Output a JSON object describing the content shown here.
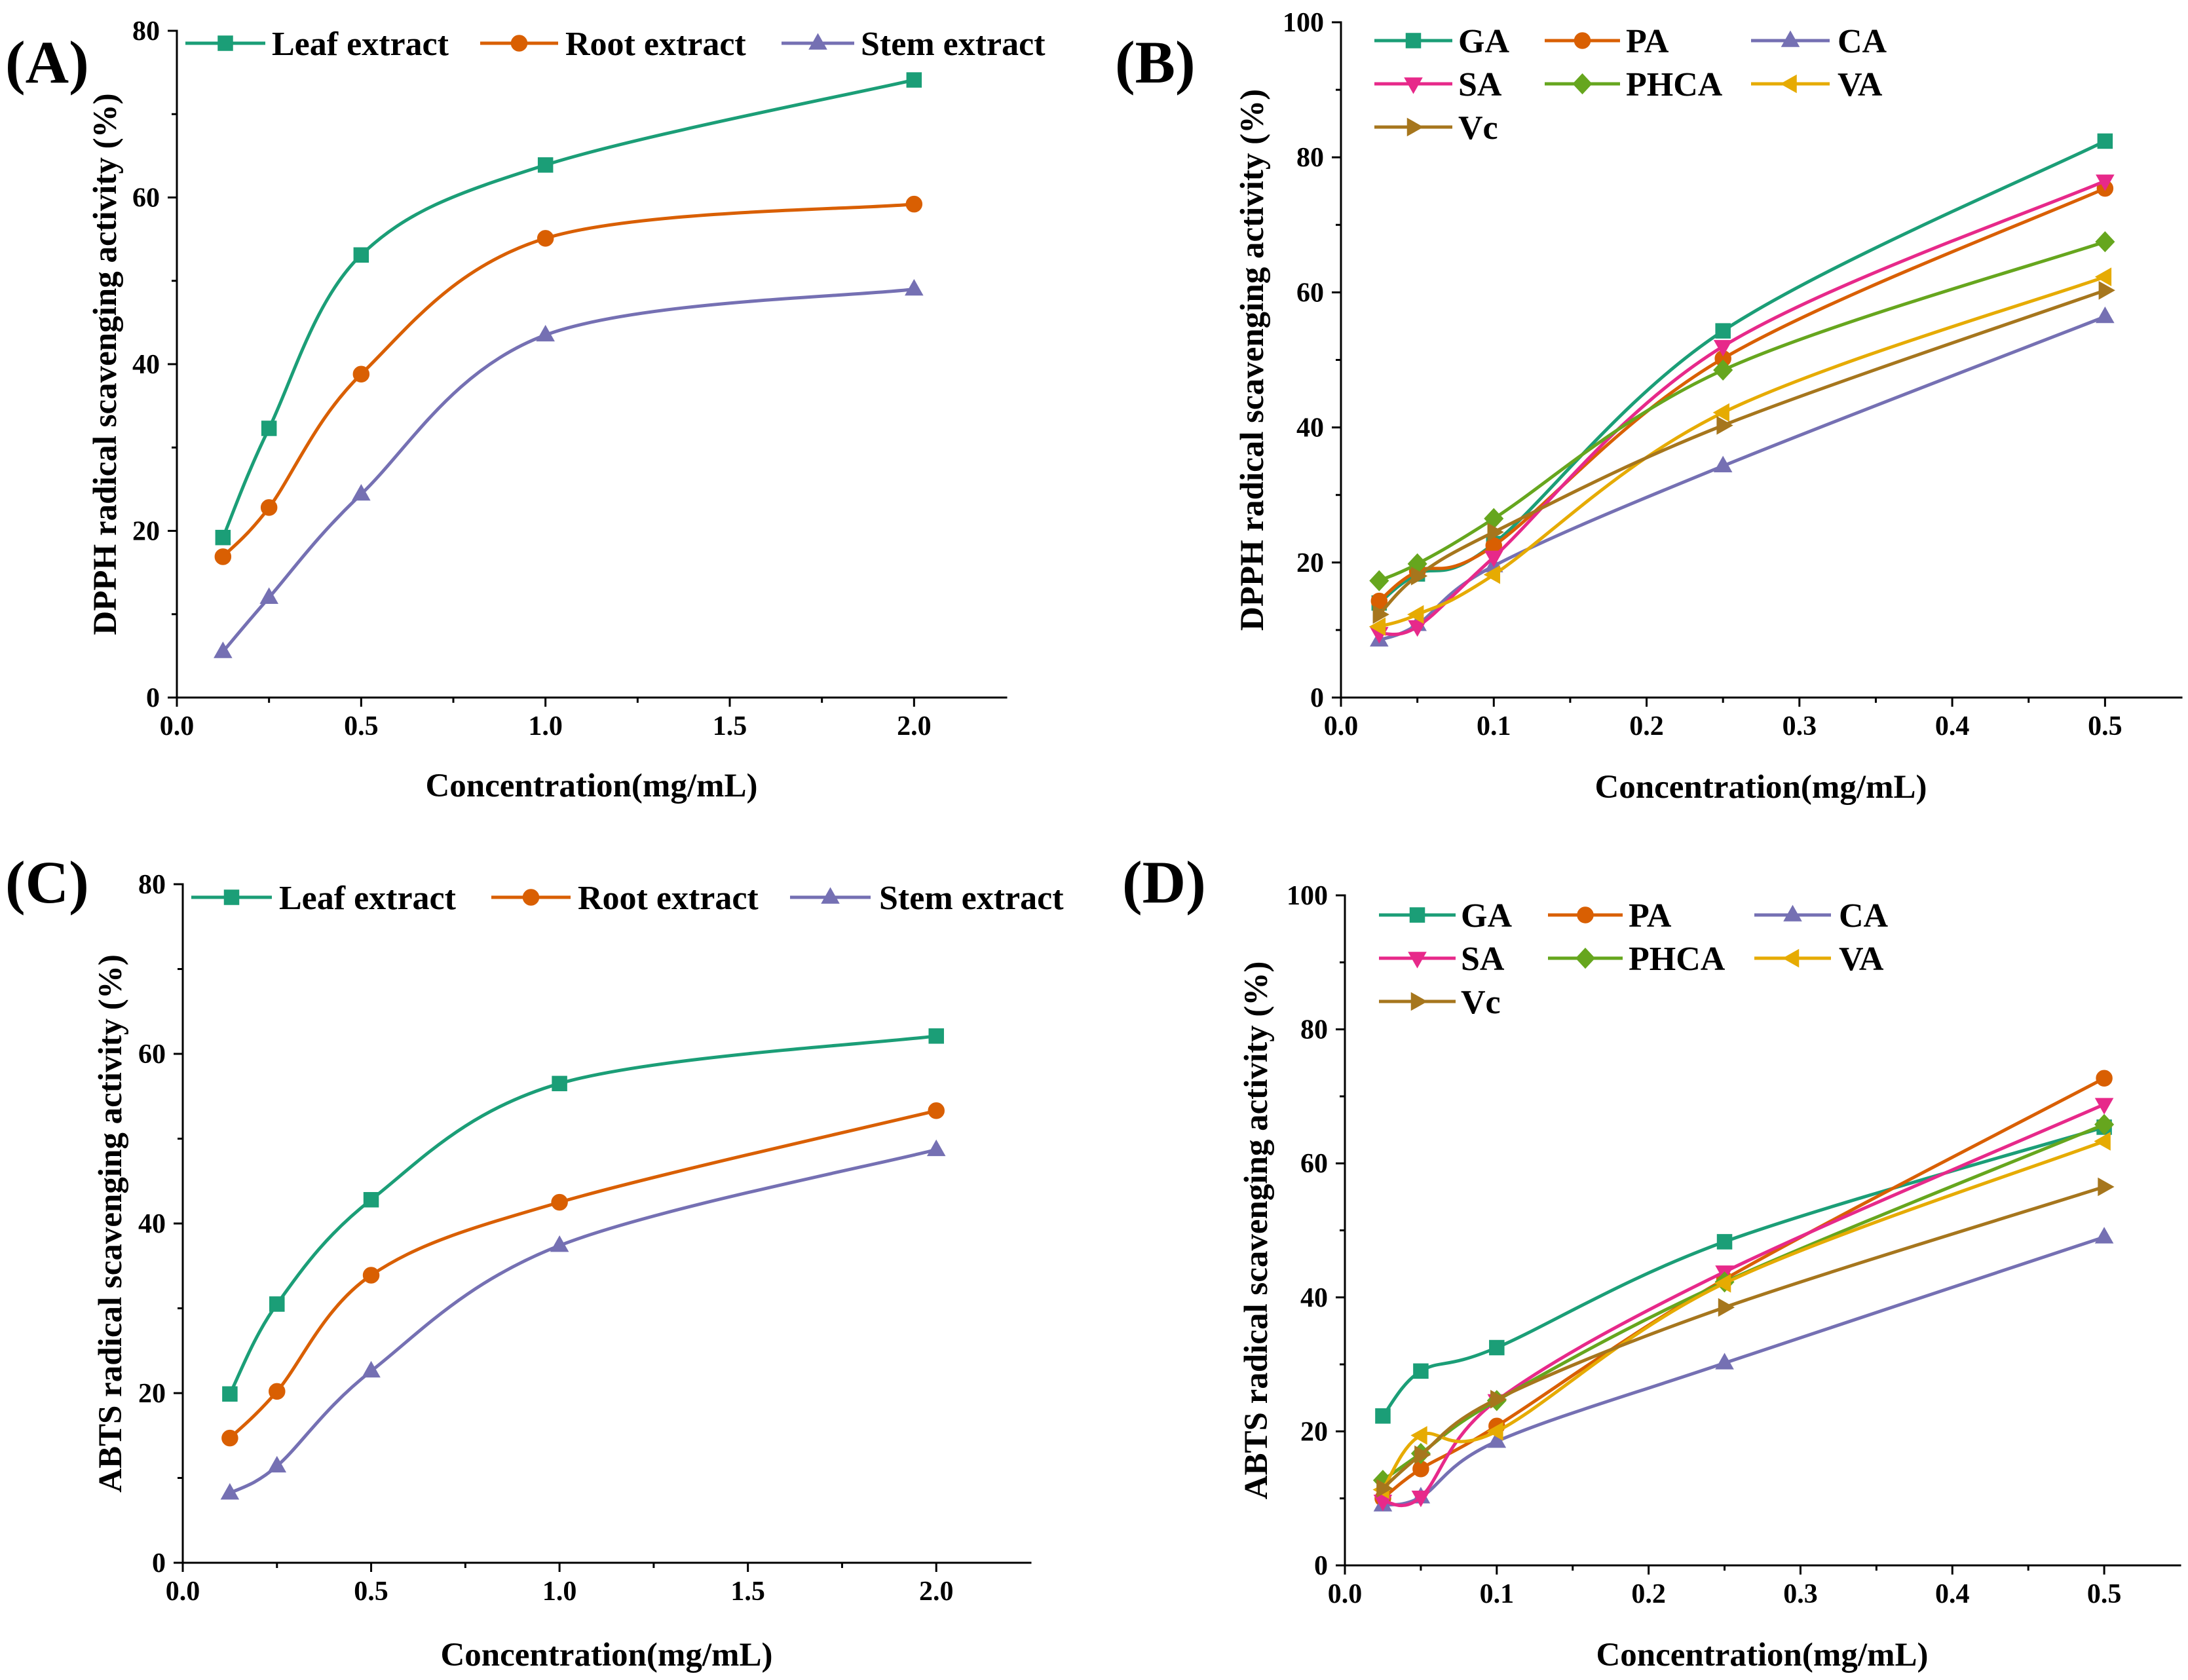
{
  "chart_data": [
    {
      "panel": "(A)",
      "type": "line",
      "xlabel": "Concentration(mg/mL)",
      "ylabel": "DPPH radical scavenging activity (%)",
      "xlim": [
        0,
        2.25
      ],
      "ylim": [
        0,
        80
      ],
      "xticks": [
        "0.0",
        "0.5",
        "1.0",
        "1.5",
        "2.0"
      ],
      "yticks": [
        "0",
        "20",
        "40",
        "60",
        "80"
      ],
      "legend": "top",
      "x": [
        0.125,
        0.25,
        0.5,
        1.0,
        2.0
      ],
      "series": [
        {
          "name": "Leaf extract",
          "color": "#1b9e77",
          "marker": "square",
          "values": [
            19.2,
            32.3,
            53.1,
            63.9,
            74.1
          ]
        },
        {
          "name": "Root extract",
          "color": "#d95f02",
          "marker": "circle",
          "values": [
            16.9,
            22.8,
            38.8,
            55.1,
            59.2
          ]
        },
        {
          "name": "Stem extract",
          "color": "#7570b3",
          "marker": "triangle-up",
          "values": [
            5.5,
            12.0,
            24.4,
            43.5,
            49.0
          ]
        }
      ]
    },
    {
      "panel": "(B)",
      "type": "line",
      "xlabel": "Concentration(mg/mL)",
      "ylabel": "DPPH radical scavenging activity (%)",
      "xlim": [
        0,
        0.55
      ],
      "ylim": [
        0,
        100
      ],
      "xticks": [
        "0.0",
        "0.1",
        "0.2",
        "0.3",
        "0.4",
        "0.5"
      ],
      "yticks": [
        "0",
        "20",
        "40",
        "60",
        "80",
        "100"
      ],
      "legend": "top-left",
      "x": [
        0.025,
        0.05,
        0.1,
        0.25,
        0.5
      ],
      "series": [
        {
          "name": "GA",
          "color": "#1b9e77",
          "marker": "square",
          "values": [
            14.0,
            18.3,
            22.8,
            54.3,
            82.4
          ]
        },
        {
          "name": "PA",
          "color": "#d95f02",
          "marker": "circle",
          "values": [
            14.3,
            18.7,
            22.5,
            50.2,
            75.4
          ]
        },
        {
          "name": "CA",
          "color": "#7570b3",
          "marker": "triangle-up",
          "values": [
            8.5,
            10.8,
            19.5,
            34.3,
            56.4
          ]
        },
        {
          "name": "SA",
          "color": "#e7298a",
          "marker": "triangle-down",
          "values": [
            9.5,
            10.5,
            20.8,
            52.0,
            76.5
          ]
        },
        {
          "name": "PHCA",
          "color": "#66a61e",
          "marker": "diamond",
          "values": [
            17.3,
            19.8,
            26.5,
            48.5,
            67.5
          ]
        },
        {
          "name": "VA",
          "color": "#e6ab02",
          "marker": "triangle-left",
          "values": [
            10.5,
            12.3,
            18.2,
            42.2,
            62.3
          ]
        },
        {
          "name": "Vc",
          "color": "#a6761d",
          "marker": "triangle-right",
          "values": [
            12.3,
            18.0,
            24.5,
            40.3,
            60.3
          ]
        }
      ]
    },
    {
      "panel": "(C)",
      "type": "line",
      "xlabel": "Concentration(mg/mL)",
      "ylabel": "ABTS radical scavenging activity (%)",
      "xlim": [
        0,
        2.25
      ],
      "ylim": [
        0,
        80
      ],
      "xticks": [
        "0.0",
        "0.5",
        "1.0",
        "1.5",
        "2.0"
      ],
      "yticks": [
        "0",
        "20",
        "40",
        "60",
        "80"
      ],
      "legend": "top",
      "x": [
        0.125,
        0.25,
        0.5,
        1.0,
        2.0
      ],
      "series": [
        {
          "name": "Leaf extract",
          "color": "#1b9e77",
          "marker": "square",
          "values": [
            19.9,
            30.5,
            42.8,
            56.5,
            62.1
          ]
        },
        {
          "name": "Root extract",
          "color": "#d95f02",
          "marker": "circle",
          "values": [
            14.7,
            20.2,
            33.9,
            42.5,
            53.3
          ]
        },
        {
          "name": "Stem extract",
          "color": "#7570b3",
          "marker": "triangle-up",
          "values": [
            8.2,
            11.4,
            22.6,
            37.4,
            48.7
          ]
        }
      ]
    },
    {
      "panel": "(D)",
      "type": "line",
      "xlabel": "Concentration(mg/mL)",
      "ylabel": "ABTS radical scavenging activity (%)",
      "xlim": [
        0,
        0.55
      ],
      "ylim": [
        0,
        100
      ],
      "xticks": [
        "0.0",
        "0.1",
        "0.2",
        "0.3",
        "0.4",
        "0.5"
      ],
      "yticks": [
        "0",
        "20",
        "40",
        "60",
        "80",
        "100"
      ],
      "legend": "top-left",
      "x": [
        0.025,
        0.05,
        0.1,
        0.25,
        0.5
      ],
      "series": [
        {
          "name": "GA",
          "color": "#1b9e77",
          "marker": "square",
          "values": [
            22.3,
            29.0,
            32.5,
            48.3,
            65.4
          ]
        },
        {
          "name": "PA",
          "color": "#d95f02",
          "marker": "circle",
          "values": [
            10.0,
            14.4,
            20.8,
            42.7,
            72.7
          ]
        },
        {
          "name": "CA",
          "color": "#7570b3",
          "marker": "triangle-up",
          "values": [
            9.0,
            10.2,
            18.5,
            30.2,
            49.0
          ]
        },
        {
          "name": "SA",
          "color": "#e7298a",
          "marker": "triangle-down",
          "values": [
            9.6,
            10.2,
            24.6,
            43.8,
            68.8
          ]
        },
        {
          "name": "PHCA",
          "color": "#66a61e",
          "marker": "diamond",
          "values": [
            12.7,
            16.7,
            24.6,
            42.3,
            65.8
          ]
        },
        {
          "name": "VA",
          "color": "#e6ab02",
          "marker": "triangle-left",
          "values": [
            11.3,
            19.4,
            20.0,
            42.1,
            63.3
          ]
        },
        {
          "name": "Vc",
          "color": "#a6761d",
          "marker": "triangle-right",
          "values": [
            11.5,
            16.5,
            24.8,
            38.5,
            56.5
          ]
        }
      ]
    }
  ]
}
